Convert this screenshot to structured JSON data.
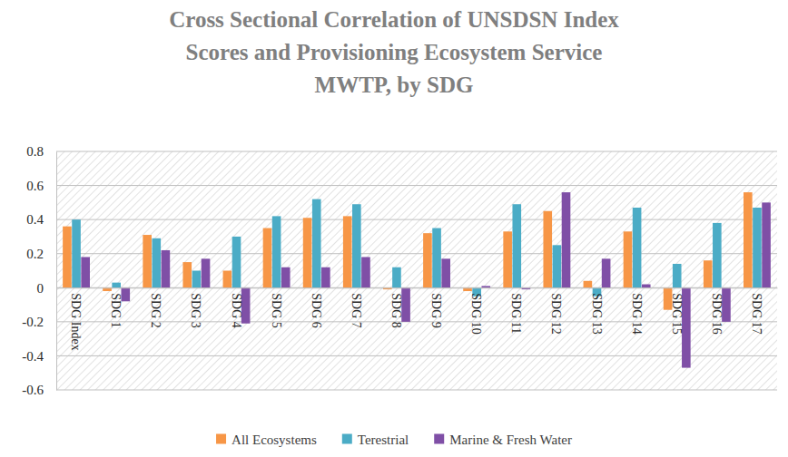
{
  "chart_data": {
    "type": "bar",
    "title": "Cross Sectional Correlation of UNSDSN Index\nScores and Provisioning Ecosystem Service\nMWTP, by SDG",
    "categories": [
      "SDG Index",
      "SDG 1",
      "SDG 2",
      "SDG 3",
      "SDG 4",
      "SDG 5",
      "SDG 6",
      "SDG 7",
      "SDG 8",
      "SDG 9",
      "SDG 10",
      "SDG 11",
      "SDG 12",
      "SDG 13",
      "SDG 14",
      "SDG 15",
      "SDG 16",
      "SDG 17"
    ],
    "series": [
      {
        "name": "All Ecosystems",
        "color": "#f79646",
        "values": [
          0.36,
          -0.02,
          0.31,
          0.15,
          0.1,
          0.35,
          0.41,
          0.42,
          -0.01,
          0.32,
          -0.02,
          0.33,
          0.45,
          0.04,
          0.33,
          -0.13,
          0.16,
          0.56
        ]
      },
      {
        "name": "Terestrial",
        "color": "#4bacc6",
        "values": [
          0.4,
          0.03,
          0.29,
          0.1,
          0.3,
          0.42,
          0.52,
          0.49,
          0.12,
          0.35,
          -0.05,
          0.49,
          0.25,
          -0.05,
          0.47,
          0.14,
          0.38,
          0.47
        ]
      },
      {
        "name": "Marine & Fresh Water",
        "color": "#7f4fa6",
        "values": [
          0.18,
          -0.08,
          0.22,
          0.17,
          -0.21,
          0.12,
          0.12,
          0.18,
          -0.2,
          0.17,
          0.01,
          -0.01,
          0.56,
          0.17,
          0.02,
          -0.47,
          -0.2,
          0.5
        ]
      }
    ],
    "ylim": [
      -0.6,
      0.8
    ],
    "yticks": [
      -0.6,
      -0.4,
      -0.2,
      0,
      0.2,
      0.4,
      0.6,
      0.8
    ],
    "grid": true,
    "legend": "bottom"
  }
}
